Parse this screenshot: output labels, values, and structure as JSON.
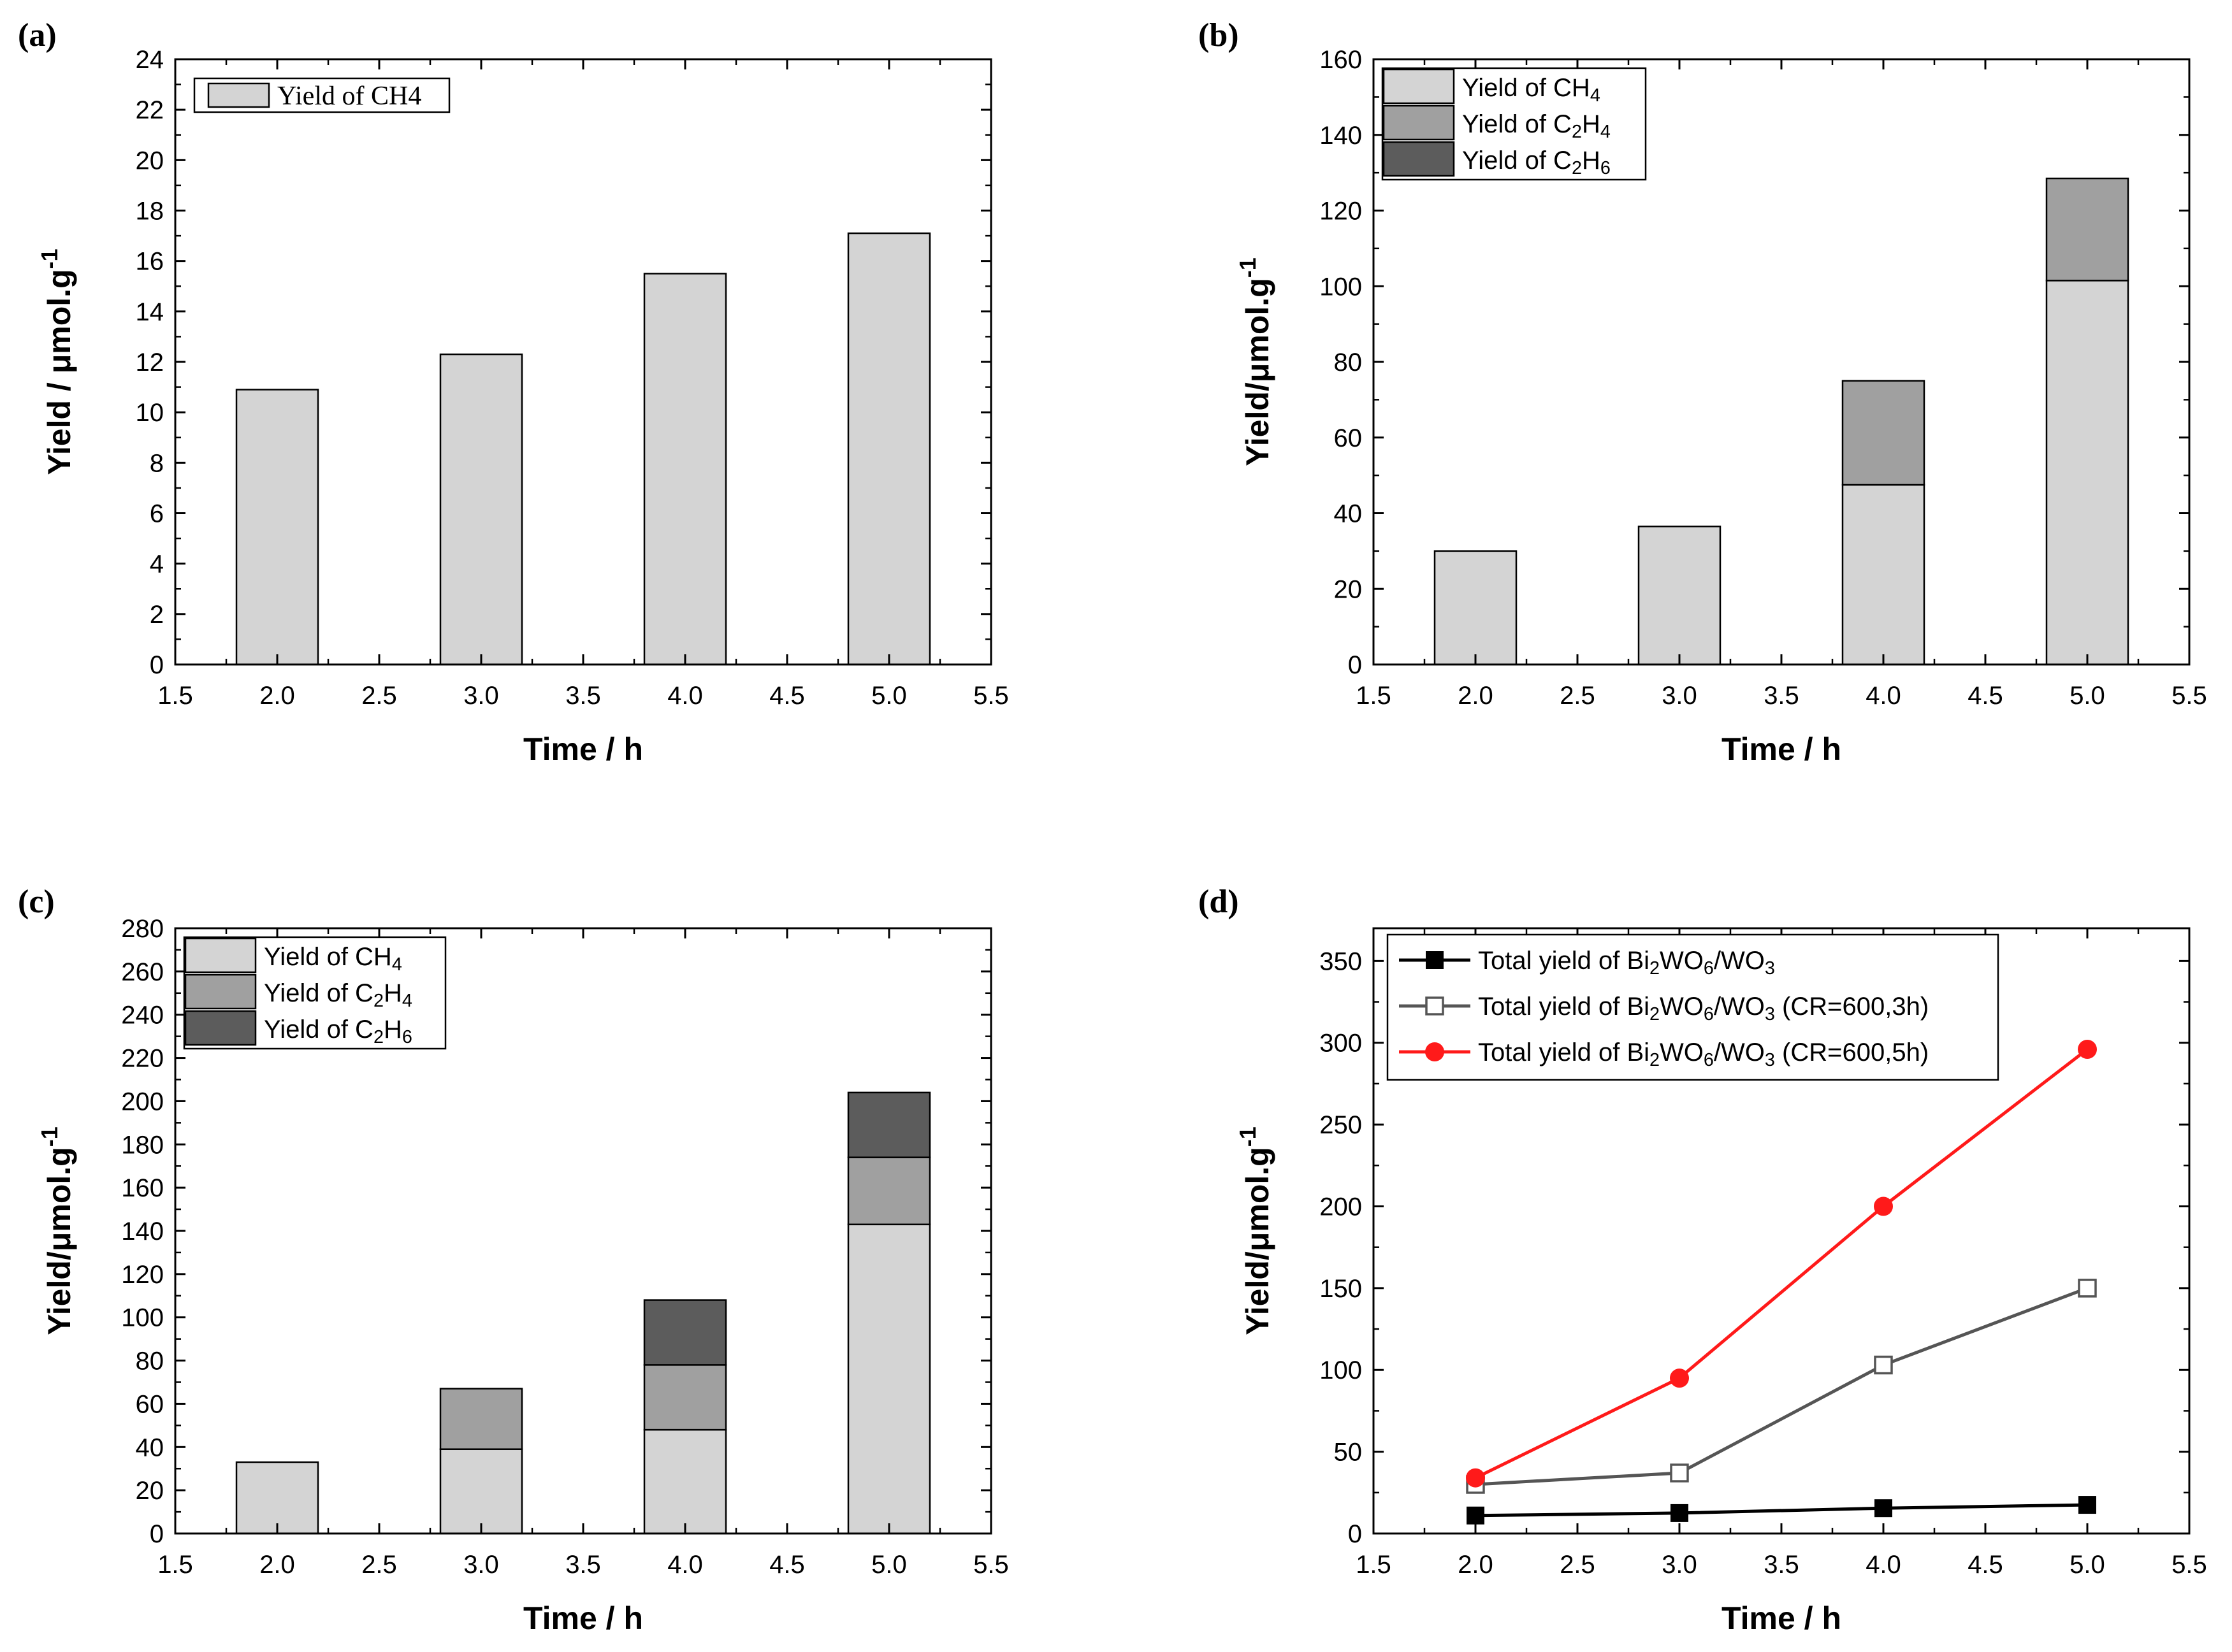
{
  "figure": {
    "panels": [
      {
        "id": "a",
        "label": "(a)"
      },
      {
        "id": "b",
        "label": "(b)"
      },
      {
        "id": "c",
        "label": "(c)"
      },
      {
        "id": "d",
        "label": "(d)"
      }
    ]
  },
  "colors": {
    "ch4": "#d4d4d4",
    "c2h4": "#a0a0a0",
    "c2h6": "#5c5c5c",
    "series_black": "#000000",
    "series_gray": "#555555",
    "series_red": "#ff1a1a"
  },
  "chart_data": [
    {
      "panel": "a",
      "type": "bar",
      "stacked": true,
      "x": [
        2.0,
        3.0,
        4.0,
        5.0
      ],
      "series": [
        {
          "name": "Yield of CH4",
          "values": [
            10.9,
            12.3,
            15.5,
            17.1
          ],
          "color_key": "ch4",
          "legend_style": "serif"
        }
      ],
      "xlabel": "Time / h",
      "ylabel": "Yield / μmol.g",
      "ylabel_sup": "-1",
      "xlim": [
        1.5,
        5.5
      ],
      "ylim": [
        0,
        24
      ],
      "xticks": [
        "1.5",
        "2.0",
        "2.5",
        "3.0",
        "3.5",
        "4.0",
        "4.5",
        "5.0",
        "5.5"
      ],
      "yticks": [
        "0",
        "2",
        "4",
        "6",
        "8",
        "10",
        "12",
        "14",
        "16",
        "18",
        "20",
        "22",
        "24"
      ],
      "legend": "top-left"
    },
    {
      "panel": "b",
      "type": "bar",
      "stacked": true,
      "x": [
        2.0,
        3.0,
        4.0,
        5.0
      ],
      "series": [
        {
          "name": "Yield of CH4",
          "base": "Yield of CH",
          "sub": "4",
          "values": [
            30,
            36.5,
            47.5,
            101.5
          ],
          "color_key": "ch4"
        },
        {
          "name": "Yield of C2H4",
          "base": "Yield of C",
          "sub": "2",
          "mid": "H",
          "sub2": "4",
          "values": [
            0,
            0,
            27.5,
            27
          ],
          "color_key": "c2h4"
        },
        {
          "name": "Yield of C2H6",
          "base": "Yield of C",
          "sub": "2",
          "mid": "H",
          "sub2": "6",
          "values": [
            0,
            0,
            0,
            0
          ],
          "color_key": "c2h6"
        }
      ],
      "xlabel": "Time / h",
      "ylabel": "Yield/μmol.g",
      "ylabel_sup": "-1",
      "xlim": [
        1.5,
        5.5
      ],
      "ylim": [
        0,
        160
      ],
      "xticks": [
        "1.5",
        "2.0",
        "2.5",
        "3.0",
        "3.5",
        "4.0",
        "4.5",
        "5.0",
        "5.5"
      ],
      "yticks": [
        "0",
        "20",
        "40",
        "60",
        "80",
        "100",
        "120",
        "140",
        "160"
      ],
      "legend": "top-left"
    },
    {
      "panel": "c",
      "type": "bar",
      "stacked": true,
      "x": [
        2.0,
        3.0,
        4.0,
        5.0
      ],
      "series": [
        {
          "name": "Yield of CH4",
          "base": "Yield of CH",
          "sub": "4",
          "values": [
            33,
            39,
            48,
            143
          ],
          "color_key": "ch4"
        },
        {
          "name": "Yield of C2H4",
          "base": "Yield of C",
          "sub": "2",
          "mid": "H",
          "sub2": "4",
          "values": [
            0,
            28,
            30,
            31
          ],
          "color_key": "c2h4"
        },
        {
          "name": "Yield of C2H6",
          "base": "Yield of C",
          "sub": "2",
          "mid": "H",
          "sub2": "6",
          "values": [
            0,
            0,
            30,
            30
          ],
          "color_key": "c2h6"
        }
      ],
      "xlabel": "Time / h",
      "ylabel": "Yield/μmol.g",
      "ylabel_sup": "-1",
      "xlim": [
        1.5,
        5.5
      ],
      "ylim": [
        0,
        280
      ],
      "xticks": [
        "1.5",
        "2.0",
        "2.5",
        "3.0",
        "3.5",
        "4.0",
        "4.5",
        "5.0",
        "5.5"
      ],
      "yticks": [
        "0",
        "20",
        "40",
        "60",
        "80",
        "100",
        "120",
        "140",
        "160",
        "180",
        "200",
        "220",
        "240",
        "260",
        "280"
      ],
      "legend": "top-left"
    },
    {
      "panel": "d",
      "type": "line",
      "x": [
        2.0,
        3.0,
        4.0,
        5.0
      ],
      "series": [
        {
          "name": "Total yield of Bi2WO6/WO3",
          "values": [
            11,
            12.5,
            15.5,
            17.5
          ],
          "color_key": "series_black",
          "marker": "square-filled",
          "suffix": ""
        },
        {
          "name": "Total yield of Bi2WO6/WO3 (CR=600,3h)",
          "values": [
            30,
            37,
            103,
            150
          ],
          "color_key": "series_gray",
          "marker": "square-open",
          "suffix": " (CR=600,3h)"
        },
        {
          "name": "Total yield of Bi2WO6/WO3 (CR=600,5h)",
          "values": [
            34,
            95,
            200,
            296
          ],
          "color_key": "series_red",
          "marker": "circle-filled",
          "suffix": " (CR=600,5h)"
        }
      ],
      "legend_parts": {
        "t1": "Total yield of Bi",
        "s1": "2",
        "t2": "WO",
        "s2": "6",
        "t3": "/WO",
        "s3": "3"
      },
      "xlabel": "Time / h",
      "ylabel": "Yield/μmol.g",
      "ylabel_sup": "-1",
      "xlim": [
        1.5,
        5.5
      ],
      "ylim": [
        0,
        370
      ],
      "xticks": [
        "1.5",
        "2.0",
        "2.5",
        "3.0",
        "3.5",
        "4.0",
        "4.5",
        "5.0",
        "5.5"
      ],
      "yticks": [
        "0",
        "50",
        "100",
        "150",
        "200",
        "250",
        "300",
        "350"
      ],
      "legend": "top-left"
    }
  ]
}
